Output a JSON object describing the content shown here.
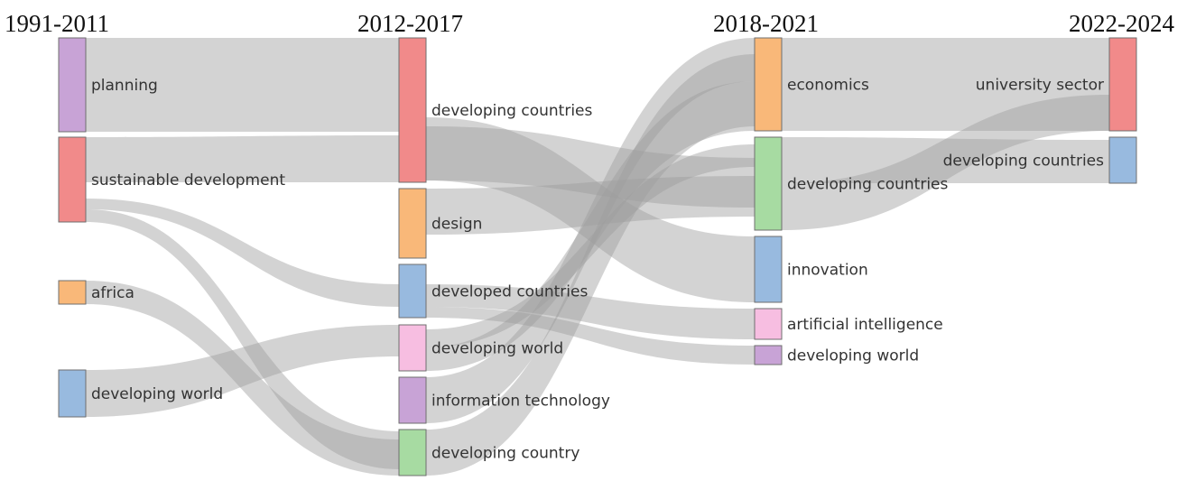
{
  "diagram": {
    "type": "sankey",
    "periods": [
      "1991-2011",
      "2012-2017",
      "2018-2021",
      "2022-2024"
    ],
    "nodes": [
      {
        "id": "p1_planning",
        "period": 0,
        "label": "planning",
        "color": "#c39bd3"
      },
      {
        "id": "p1_sustainable",
        "period": 0,
        "label": "sustainable development",
        "color": "#f08080"
      },
      {
        "id": "p1_africa",
        "period": 0,
        "label": "africa",
        "color": "#f9b26e"
      },
      {
        "id": "p1_devworld",
        "period": 0,
        "label": "developing world",
        "color": "#8fb4dc"
      },
      {
        "id": "p2_devcountries",
        "period": 1,
        "label": "developing countries",
        "color": "#f08080"
      },
      {
        "id": "p2_design",
        "period": 1,
        "label": "design",
        "color": "#f9b26e"
      },
      {
        "id": "p2_developed",
        "period": 1,
        "label": "developed countries",
        "color": "#8fb4dc"
      },
      {
        "id": "p2_devworld",
        "period": 1,
        "label": "developing world",
        "color": "#f6b8de"
      },
      {
        "id": "p2_infotech",
        "period": 1,
        "label": "information technology",
        "color": "#c39bd3"
      },
      {
        "id": "p2_devcountry",
        "period": 1,
        "label": "developing country",
        "color": "#9fd89a"
      },
      {
        "id": "p3_economics",
        "period": 2,
        "label": "economics",
        "color": "#f9b26e"
      },
      {
        "id": "p3_devcountries",
        "period": 2,
        "label": "developing countries",
        "color": "#9fd89a"
      },
      {
        "id": "p3_innovation",
        "period": 2,
        "label": "innovation",
        "color": "#8fb4dc"
      },
      {
        "id": "p3_ai",
        "period": 2,
        "label": "artificial intelligence",
        "color": "#f6b8de"
      },
      {
        "id": "p3_devworld",
        "period": 2,
        "label": "developing world",
        "color": "#c39bd3"
      },
      {
        "id": "p4_university",
        "period": 3,
        "label": "university sector",
        "color": "#f08080"
      },
      {
        "id": "p4_devcountries",
        "period": 3,
        "label": "developing countries",
        "color": "#8fb4dc"
      }
    ],
    "links": [
      {
        "source": "p1_planning",
        "target": "p2_devcountries"
      },
      {
        "source": "p1_sustainable",
        "target": "p2_devcountries"
      },
      {
        "source": "p1_sustainable",
        "target": "p2_developed"
      },
      {
        "source": "p1_sustainable",
        "target": "p2_devcountry"
      },
      {
        "source": "p1_africa",
        "target": "p2_devcountry"
      },
      {
        "source": "p1_devworld",
        "target": "p2_devworld"
      },
      {
        "source": "p2_devcountries",
        "target": "p3_innovation"
      },
      {
        "source": "p2_design",
        "target": "p3_devcountries"
      },
      {
        "source": "p2_developed",
        "target": "p3_ai"
      },
      {
        "source": "p2_developed",
        "target": "p3_devworld"
      },
      {
        "source": "p2_devworld",
        "target": "p3_economics"
      },
      {
        "source": "p2_devworld",
        "target": "p3_devcountries"
      },
      {
        "source": "p2_infotech",
        "target": "p3_economics"
      },
      {
        "source": "p2_devcountry",
        "target": "p3_economics"
      },
      {
        "source": "p2_devcountries",
        "target": "p3_devcountries"
      },
      {
        "source": "p3_economics",
        "target": "p4_university"
      },
      {
        "source": "p3_devcountries",
        "target": "p4_devcountries"
      },
      {
        "source": "p3_devcountries",
        "target": "p4_university"
      }
    ]
  }
}
